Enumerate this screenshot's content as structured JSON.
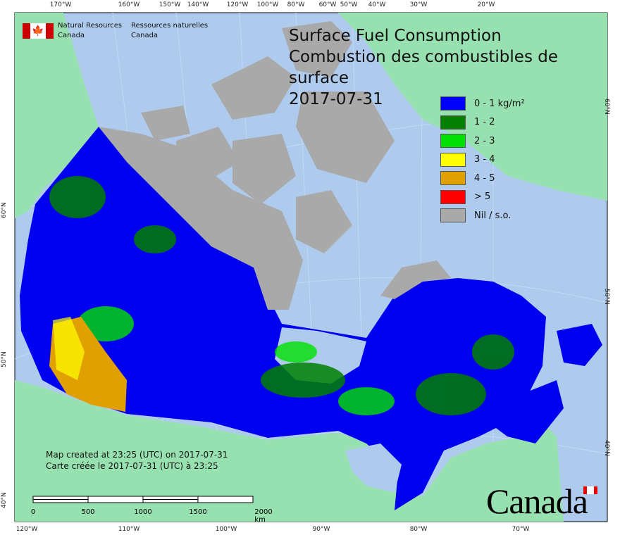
{
  "title": {
    "line1": "Surface Fuel Consumption",
    "line2": "Combustion des combustibles de surface",
    "date": "2017-07-31"
  },
  "agency": {
    "en_line1": "Natural Resources",
    "en_line2": "Canada",
    "fr_line1": "Ressources naturelles",
    "fr_line2": "Canada",
    "flag_icon": "canada-flag-icon"
  },
  "legend": [
    {
      "label": "0 - 1 kg/m²",
      "color": "#0000ff"
    },
    {
      "label": "1 - 2",
      "color": "#007f00"
    },
    {
      "label": "2 - 3",
      "color": "#00e000"
    },
    {
      "label": "3 - 4",
      "color": "#ffff00"
    },
    {
      "label": "4 - 5",
      "color": "#e0a000"
    },
    {
      "label": "> 5",
      "color": "#ff0000"
    },
    {
      "label": "Nil / s.o.",
      "color": "#a9a9a9"
    }
  ],
  "stamp": {
    "en": "Map created at 23:25 (UTC) on 2017-07-31",
    "fr": "Carte créée le 2017-07-31 (UTC) à 23:25"
  },
  "scale_bar": {
    "labels": [
      "0",
      "500",
      "1000",
      "1500",
      "2000 km"
    ]
  },
  "axes": {
    "top": [
      "170°W",
      "160°W",
      "150°W",
      "140°W",
      "120°W",
      "100°W",
      "80°W",
      "60°W",
      "50°W",
      "40°W",
      "30°W",
      "20°W"
    ],
    "bottom": [
      "120°W",
      "110°W",
      "100°W",
      "90°W",
      "80°W",
      "70°W"
    ],
    "left": [
      "60°N",
      "50°N",
      "40°N"
    ],
    "right": [
      "60°N",
      "50°N",
      "40°N"
    ]
  },
  "wordmark": "Canada",
  "colors": {
    "water": "#aecbee",
    "land_other": "#97e0b0",
    "nil": "#a9a9a9"
  }
}
